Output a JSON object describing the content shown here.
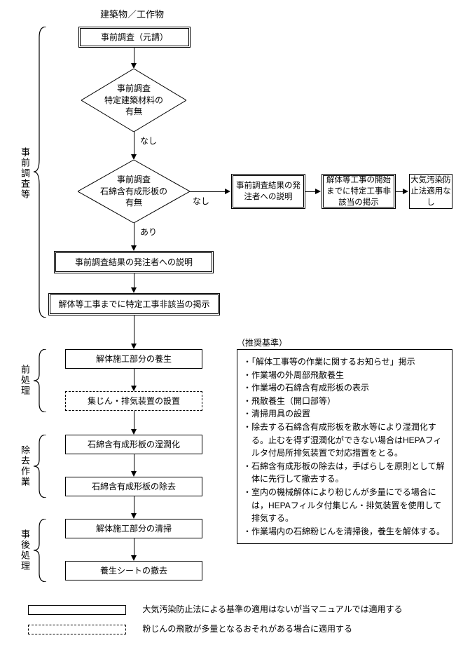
{
  "type": "flowchart",
  "title": "建築物／工作物",
  "sections": {
    "s1": "事前調査等",
    "s2": "前処理",
    "s3": "除去作業",
    "s4": "事後処理"
  },
  "nodes": {
    "n1": {
      "label": "事前調査（元請）"
    },
    "n2": {
      "label": "事前調査\n特定建築材料の\n有無"
    },
    "n3": {
      "label": "事前調査\n石綿含有成形板の\n有無"
    },
    "n4": {
      "label": "事前調査結果の発注者への説明"
    },
    "n5": {
      "label": "解体等工事までに特定工事非該当の掲示"
    },
    "n6": {
      "label": "解体施工部分の養生"
    },
    "n7": {
      "label": "集じん・排気装置の設置"
    },
    "n8": {
      "label": "石綿含有成形板の湿潤化"
    },
    "n9": {
      "label": "石綿含有成形板の除去"
    },
    "n10": {
      "label": "解体施工部分の清掃"
    },
    "n11": {
      "label": "養生シートの撤去"
    },
    "b1": {
      "label": "事前調査結果の発注者への説明"
    },
    "b2": {
      "label": "解体等工事の開始までに特定工事非該当の掲示"
    },
    "b3": {
      "label": "大気汚染防止法適用なし"
    }
  },
  "edge_labels": {
    "e1": "なし",
    "e2": "なし",
    "e3": "あり"
  },
  "recommendations": {
    "title": "（推奨基準）",
    "items": [
      "・「解体工事等の作業に関するお知らせ」掲示",
      "・作業場の外周部飛散養生",
      "・作業場の石綿含有成形板の表示",
      "・飛散養生（開口部等）",
      "・清掃用具の設置",
      "・除去する石綿含有成形板を散水等により湿潤化する。止むを得ず湿潤化ができない場合はHEPAフィルタ付局所排気装置で対応措置をとる。",
      "・石綿含有成形板の除去は，手ばらしを原則として解体に先行して撤去する。",
      "・室内の機械解体により粉じんが多量にでる場合には，HEPAフィルタ付集じん・排気装置を使用して排気する。",
      "・作業場内の石綿粉じんを清掃後，養生を解体する。"
    ]
  },
  "legend": {
    "l1": "大気汚染防止法による基準の適用はないが当マニュアルでは適用する",
    "l2": "粉じんの飛散が多量となるおそれがある場合に適用する"
  },
  "style": {
    "colors": {
      "stroke": "#000000",
      "bg": "#ffffff"
    },
    "fontsize": {
      "node": 12,
      "section": 13
    }
  }
}
